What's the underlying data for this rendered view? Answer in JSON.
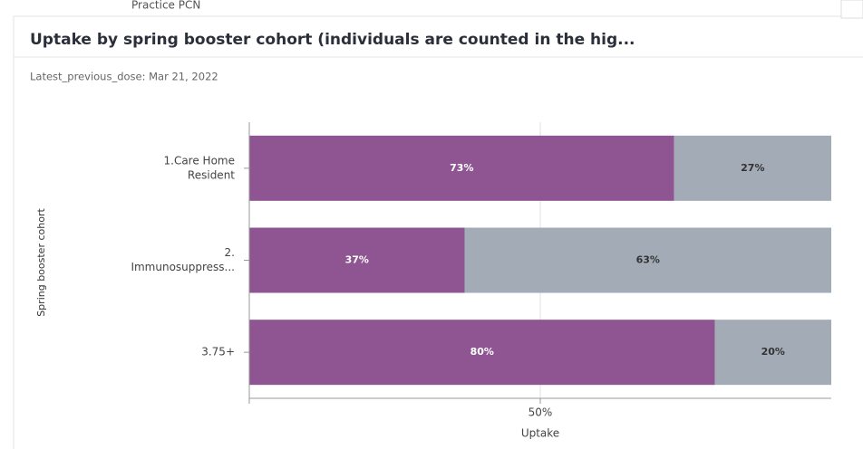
{
  "page": {
    "breadcrumb": "Practice PCN"
  },
  "chart_data": {
    "type": "stacked-hbar",
    "title": "Uptake by spring booster cohort (individuals are counted in the hig...",
    "subtitle": "Latest_previous_dose: Mar 21, 2022",
    "x_label": "Uptake",
    "y_label": "Spring booster cohort",
    "categories": [
      [
        "1.Care Home",
        "Resident"
      ],
      [
        "2.",
        "Immunosuppress..."
      ],
      [
        "3.75+"
      ]
    ],
    "series": [
      {
        "color": "#8f5593",
        "values": [
          73,
          37,
          80
        ],
        "value_labels": [
          "73%",
          "37%",
          "80%"
        ]
      },
      {
        "color": "#a3abb7",
        "values": [
          27,
          63,
          20
        ],
        "value_labels": [
          "27%",
          "63%",
          "20%"
        ]
      }
    ],
    "xlim": [
      0,
      100
    ],
    "xticks": [
      {
        "value": 50,
        "label": "50%"
      }
    ],
    "grid": true
  }
}
